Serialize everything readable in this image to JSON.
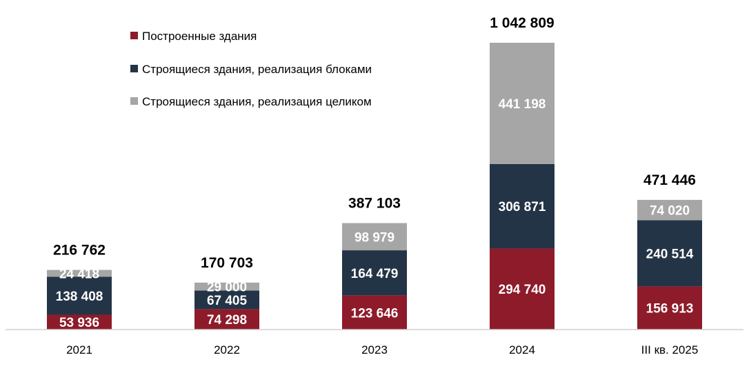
{
  "chart_data": {
    "type": "bar",
    "stacked": true,
    "categories": [
      "2021",
      "2022",
      "2023",
      "2024",
      "III кв. 2025"
    ],
    "series": [
      {
        "name": "Построенные здания",
        "color": "#8E1B2A",
        "values": [
          53936,
          74298,
          123646,
          294740,
          156913
        ],
        "labels": [
          "53 936",
          "74 298",
          "123 646",
          "294 740",
          "156 913"
        ]
      },
      {
        "name": "Строящиеся здания, реализация блоками",
        "color": "#243447",
        "values": [
          138408,
          67405,
          164479,
          306871,
          240514
        ],
        "labels": [
          "138 408",
          "67 405",
          "164 479",
          "306 871",
          "240 514"
        ]
      },
      {
        "name": "Строящиеся здания, реализация целиком",
        "color": "#A6A6A6",
        "values": [
          24418,
          29000,
          98979,
          441198,
          74020
        ],
        "labels": [
          "24 418",
          "29 000",
          "98 979",
          "441 198",
          "74 020"
        ]
      }
    ],
    "totals": [
      216762,
      170703,
      387103,
      1042809,
      471446
    ],
    "total_labels": [
      "216 762",
      "170 703",
      "387 103",
      "1 042 809",
      "471 446"
    ],
    "ylim": [
      0,
      1050000
    ],
    "grid": false,
    "legend_position": "top-left",
    "xlabel": "",
    "ylabel": "",
    "title": ""
  }
}
